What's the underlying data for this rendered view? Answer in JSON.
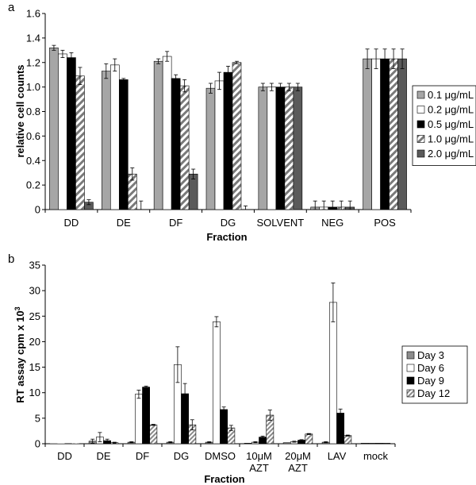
{
  "chart_data": [
    {
      "panel": "a",
      "type": "bar",
      "xlabel": "Fraction",
      "ylabel": "relative cell counts",
      "ylim": [
        0,
        1.6
      ],
      "yticks": [
        "0",
        "0.2",
        "0.4",
        "0.6",
        "0.8",
        "1.0",
        "1.2",
        "1.4",
        "1.6"
      ],
      "categories": [
        "DD",
        "DE",
        "DF",
        "DG",
        "SOLVENT",
        "NEG",
        "POS"
      ],
      "legend_position": "right",
      "series": [
        {
          "name": "0.1 μg/mL",
          "style": "light-gray",
          "values": [
            1.32,
            1.13,
            1.21,
            0.99,
            1.0,
            0.02,
            1.23
          ],
          "errors": [
            0.02,
            0.06,
            0.02,
            0.04,
            0.03,
            0.05,
            0.08
          ]
        },
        {
          "name": "0.2 μg/mL",
          "style": "white",
          "values": [
            1.27,
            1.18,
            1.25,
            1.05,
            1.0,
            0.02,
            1.23
          ],
          "errors": [
            0.03,
            0.05,
            0.04,
            0.07,
            0.03,
            0.05,
            0.08
          ]
        },
        {
          "name": "0.5 μg/mL",
          "style": "black",
          "values": [
            1.24,
            1.06,
            1.07,
            1.12,
            1.0,
            0.02,
            1.23
          ],
          "errors": [
            0.04,
            0.01,
            0.03,
            0.05,
            0.03,
            0.05,
            0.08
          ]
        },
        {
          "name": "1.0 μg/mL",
          "style": "striped",
          "values": [
            1.09,
            0.29,
            1.01,
            1.2,
            1.0,
            0.02,
            1.23
          ],
          "errors": [
            0.07,
            0.05,
            0.05,
            0.01,
            0.03,
            0.05,
            0.08
          ]
        },
        {
          "name": "2.0 μg/mL",
          "style": "dark-gray",
          "values": [
            0.06,
            0.0,
            0.29,
            0.0,
            1.0,
            0.02,
            1.23
          ],
          "errors": [
            0.02,
            0.07,
            0.04,
            0.03,
            0.03,
            0.05,
            0.08
          ]
        }
      ]
    },
    {
      "panel": "b",
      "type": "bar",
      "xlabel": "Fraction",
      "ylabel": "RT assay cpm x 10",
      "ylabel_superscript": "3",
      "ylim": [
        0,
        35
      ],
      "yticks": [
        "0",
        "5",
        "10",
        "15",
        "20",
        "25",
        "30",
        "35"
      ],
      "categories": [
        [
          "DD"
        ],
        [
          "DE"
        ],
        [
          "DF"
        ],
        [
          "DG"
        ],
        [
          "DMSO"
        ],
        [
          "10μM",
          "AZT"
        ],
        [
          "20μM",
          "AZT"
        ],
        [
          "LAV"
        ],
        [
          "mock"
        ]
      ],
      "legend_position": "right",
      "series": [
        {
          "name": "Day 3",
          "style": "gray",
          "values": [
            0.05,
            0.5,
            0.3,
            0.3,
            0.3,
            0.1,
            0.2,
            0.3,
            0.1
          ],
          "errors": [
            0,
            0.4,
            0.1,
            0.1,
            0.1,
            0,
            0,
            0.1,
            0
          ]
        },
        {
          "name": "Day 6",
          "style": "white",
          "values": [
            0.05,
            1.3,
            9.7,
            15.5,
            23.9,
            0.3,
            0.4,
            27.7,
            0.1
          ],
          "errors": [
            0,
            0.9,
            0.8,
            3.5,
            1.0,
            0.1,
            0.1,
            3.8,
            0
          ]
        },
        {
          "name": "Day 9",
          "style": "black",
          "values": [
            0.05,
            0.6,
            11.1,
            9.8,
            6.7,
            1.3,
            0.7,
            6.0,
            0.1
          ],
          "errors": [
            0,
            0.3,
            0.2,
            2.0,
            0.5,
            0.2,
            0.1,
            0.8,
            0
          ]
        },
        {
          "name": "Day 12",
          "style": "striped",
          "values": [
            0.05,
            0.2,
            3.7,
            3.7,
            3.1,
            5.6,
            1.9,
            1.6,
            0.1
          ],
          "errors": [
            0,
            0.1,
            0.1,
            1.0,
            0.5,
            1.0,
            0.1,
            0.1,
            0
          ]
        }
      ]
    }
  ]
}
